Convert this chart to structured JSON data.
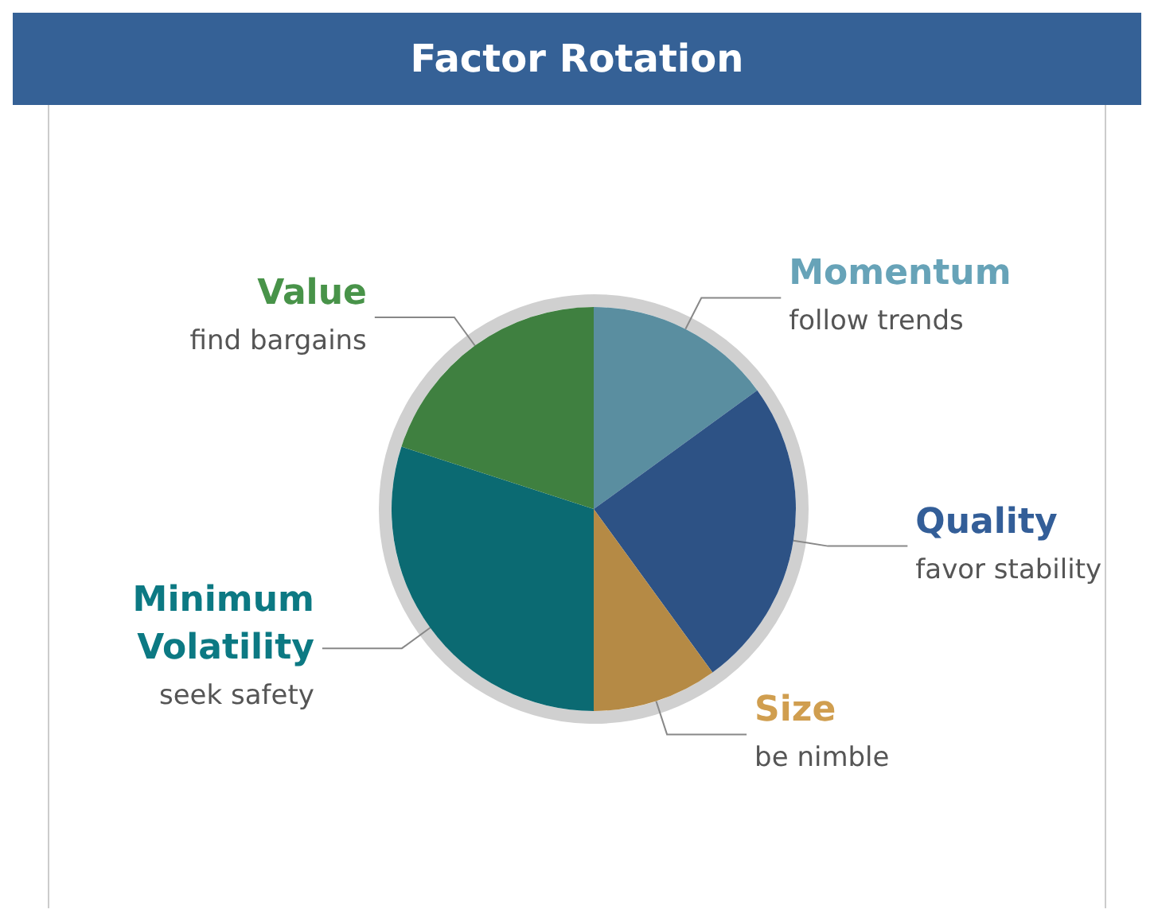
{
  "chart_data": {
    "type": "pie",
    "title": "Factor Rotation",
    "categories": [
      "Momentum",
      "Quality",
      "Size",
      "Minimum Volatility",
      "Value"
    ],
    "values": [
      15,
      25,
      10,
      30,
      20
    ],
    "colors": [
      "#5a8ea0",
      "#2d5285",
      "#b58a45",
      "#0b6a72",
      "#3f8040"
    ],
    "annotations": [
      "follow trends",
      "favor stability",
      "be nimble",
      "seek safety",
      "find bargains"
    ],
    "legend": false
  }
}
